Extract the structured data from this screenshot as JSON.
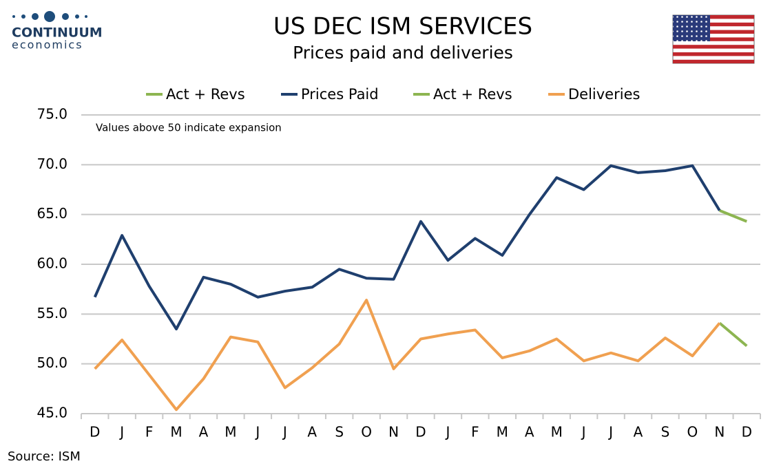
{
  "logo": {
    "name": "CONTINUUM",
    "tagline": "economics"
  },
  "source": "Source: ISM",
  "chart_data": {
    "type": "line",
    "title": "US DEC ISM SERVICES",
    "subtitle": "Prices paid and deliveries",
    "annotation": "Values above 50 indicate expansion",
    "categories": [
      "D",
      "J",
      "F",
      "M",
      "A",
      "M",
      "J",
      "J",
      "A",
      "S",
      "O",
      "N",
      "D",
      "J",
      "F",
      "M",
      "A",
      "M",
      "J",
      "J",
      "A",
      "S",
      "O",
      "N",
      "D"
    ],
    "series": [
      {
        "name": "Act + Revs",
        "color": "#8db551",
        "values": [
          null,
          null,
          null,
          null,
          null,
          null,
          null,
          null,
          null,
          null,
          null,
          null,
          null,
          null,
          null,
          null,
          null,
          null,
          null,
          null,
          null,
          null,
          null,
          65.4,
          64.3
        ]
      },
      {
        "name": "Prices Paid",
        "color": "#1f3f6e",
        "values": [
          56.7,
          62.9,
          57.8,
          53.5,
          58.7,
          58.0,
          56.7,
          57.3,
          57.7,
          59.5,
          58.6,
          58.5,
          64.3,
          60.4,
          62.6,
          60.9,
          65.0,
          68.7,
          67.5,
          69.9,
          69.2,
          69.4,
          69.9,
          65.4,
          null
        ]
      },
      {
        "name": "Act + Revs",
        "color": "#8db551",
        "values": [
          null,
          null,
          null,
          null,
          null,
          null,
          null,
          null,
          null,
          null,
          null,
          null,
          null,
          null,
          null,
          null,
          null,
          null,
          null,
          null,
          null,
          null,
          null,
          54.1,
          51.8
        ]
      },
      {
        "name": "Deliveries",
        "color": "#f0a050",
        "values": [
          49.5,
          52.4,
          48.9,
          45.4,
          48.5,
          52.7,
          52.2,
          47.6,
          49.6,
          52.0,
          56.4,
          49.5,
          52.5,
          53.0,
          53.4,
          50.6,
          51.3,
          52.5,
          50.3,
          51.1,
          50.3,
          52.6,
          50.8,
          54.1,
          null
        ]
      }
    ],
    "ylim": [
      45,
      75
    ],
    "yticks": [
      {
        "value": 45,
        "label": "45.0"
      },
      {
        "value": 50,
        "label": "50.0"
      },
      {
        "value": 55,
        "label": "55.0"
      },
      {
        "value": 60,
        "label": "60.0"
      },
      {
        "value": 65,
        "label": "65.0"
      },
      {
        "value": 70,
        "label": "70.0"
      },
      {
        "value": 75,
        "label": "75.0"
      }
    ],
    "grid": true,
    "legend": "top"
  }
}
